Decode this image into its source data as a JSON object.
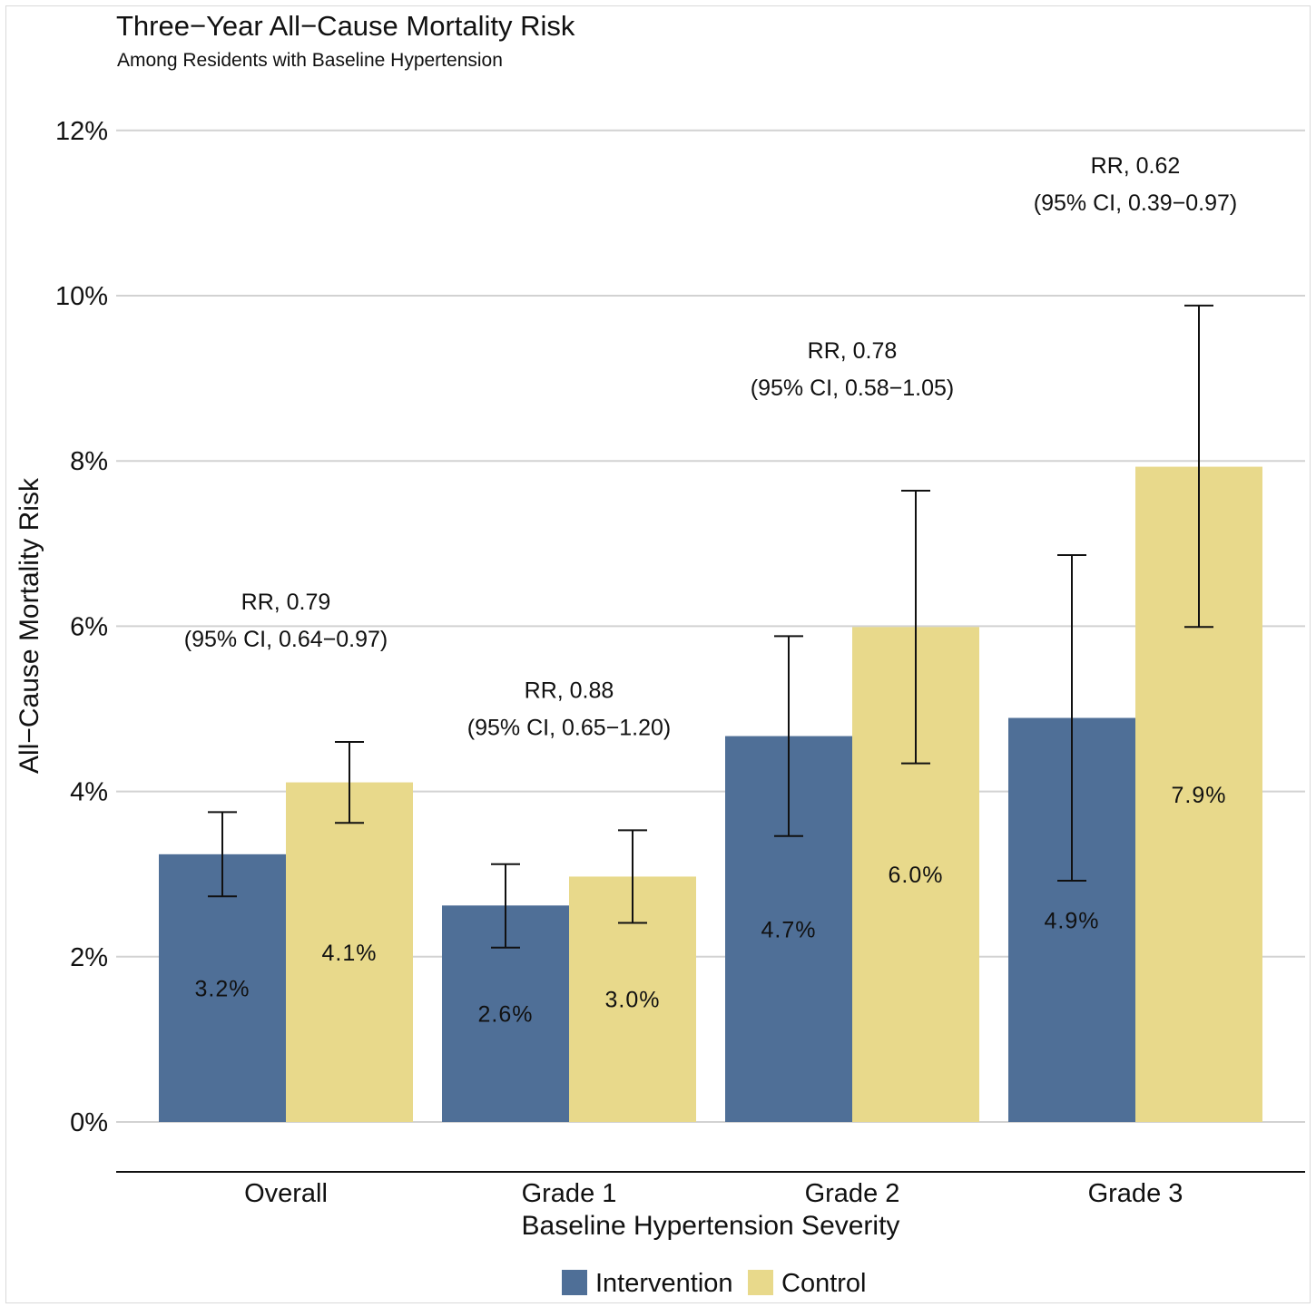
{
  "chart_data": {
    "type": "bar",
    "title": "Three−Year All−Cause Mortality Risk",
    "subtitle": "Among Residents with Baseline Hypertension",
    "xlabel": "Baseline Hypertension Severity",
    "ylabel": "All−Cause Mortality Risk",
    "categories": [
      "Overall",
      "Grade 1",
      "Grade 2",
      "Grade 3"
    ],
    "y_ticks": [
      "0%",
      "2%",
      "4%",
      "6%",
      "8%",
      "10%",
      "12%"
    ],
    "y_tick_values": [
      0,
      2,
      4,
      6,
      8,
      10,
      12
    ],
    "ylim": [
      -0.6,
      12.5
    ],
    "grid": "horizontal",
    "legend_position": "bottom",
    "series": [
      {
        "name": "Intervention",
        "color": "#4f6f97",
        "values": [
          3.24,
          2.62,
          4.67,
          4.89
        ],
        "ci_low": [
          2.73,
          2.11,
          3.46,
          2.92
        ],
        "ci_high": [
          3.75,
          3.12,
          5.88,
          6.86
        ],
        "labels": [
          "3.2%",
          "2.6%",
          "4.7%",
          "4.9%"
        ]
      },
      {
        "name": "Control",
        "color": "#e8d98b",
        "values": [
          4.11,
          2.97,
          5.99,
          7.93
        ],
        "ci_low": [
          3.62,
          2.41,
          4.34,
          5.99
        ],
        "ci_high": [
          4.6,
          3.53,
          7.64,
          9.88
        ],
        "labels": [
          "4.1%",
          "3.0%",
          "6.0%",
          "7.9%"
        ]
      }
    ],
    "annotations": [
      {
        "line1": "RR, 0.79",
        "line2": "(95% CI, 0.64−0.97)",
        "y": 6.3
      },
      {
        "line1": "RR, 0.88",
        "line2": "(95% CI, 0.65−1.20)",
        "y": 5.23
      },
      {
        "line1": "RR, 0.78",
        "line2": "(95% CI, 0.58−1.05)",
        "y": 9.34
      },
      {
        "line1": "RR, 0.62",
        "line2": "(95% CI, 0.39−0.97)",
        "y": 11.58
      }
    ]
  }
}
